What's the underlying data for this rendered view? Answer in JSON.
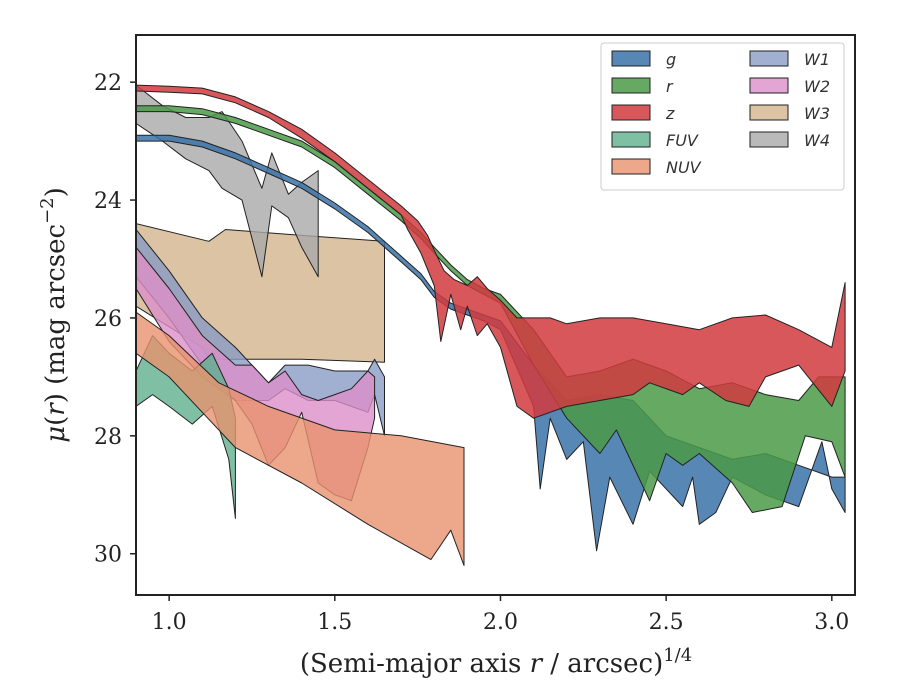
{
  "chart_data": {
    "type": "area",
    "xlabel": "(Semi-major axis r / arcsec)^1/4",
    "ylabel": "μ(r) (mag arcsec^−2)",
    "xlim": [
      0.9,
      3.07
    ],
    "ylim": [
      30.7,
      21.2
    ],
    "y_inverted": true,
    "grid": false,
    "legend_position": "top-right",
    "x_ticks": [
      1.0,
      1.5,
      2.0,
      2.5,
      3.0
    ],
    "x_tick_labels": [
      "1.0",
      "1.5",
      "2.0",
      "2.5",
      "3.0"
    ],
    "y_ticks": [
      22,
      24,
      26,
      28,
      30
    ],
    "y_tick_labels": [
      "22",
      "24",
      "26",
      "28",
      "30"
    ],
    "series": [
      {
        "name": "W3",
        "color": "#d2b48c",
        "opacity": 0.8,
        "upper": [
          [
            0.9,
            24.4
          ],
          [
            1.12,
            24.7
          ],
          [
            1.17,
            24.5
          ],
          [
            1.4,
            24.6
          ],
          [
            1.65,
            24.7
          ]
        ],
        "lower": [
          [
            0.9,
            25.8
          ],
          [
            1.1,
            26.5
          ],
          [
            1.12,
            26.7
          ],
          [
            1.4,
            26.7
          ],
          [
            1.65,
            26.75
          ]
        ]
      },
      {
        "name": "W4",
        "color": "#a9a9a9",
        "opacity": 0.8,
        "upper": [
          [
            0.9,
            22.05
          ],
          [
            0.98,
            22.4
          ],
          [
            1.05,
            22.6
          ],
          [
            1.12,
            22.6
          ],
          [
            1.16,
            22.5
          ],
          [
            1.22,
            23.0
          ],
          [
            1.28,
            23.8
          ],
          [
            1.31,
            23.2
          ],
          [
            1.36,
            23.9
          ],
          [
            1.4,
            23.7
          ],
          [
            1.45,
            23.5
          ]
        ],
        "lower": [
          [
            0.9,
            22.7
          ],
          [
            0.98,
            23.0
          ],
          [
            1.05,
            23.3
          ],
          [
            1.12,
            23.5
          ],
          [
            1.16,
            23.8
          ],
          [
            1.22,
            24.0
          ],
          [
            1.28,
            25.3
          ],
          [
            1.31,
            24.1
          ],
          [
            1.36,
            24.3
          ],
          [
            1.4,
            24.8
          ],
          [
            1.45,
            25.3
          ]
        ]
      },
      {
        "name": "W1",
        "color": "#8a9bc4",
        "opacity": 0.8,
        "upper": [
          [
            0.9,
            24.5
          ],
          [
            1.0,
            25.2
          ],
          [
            1.1,
            26.0
          ],
          [
            1.2,
            26.5
          ],
          [
            1.3,
            27.1
          ],
          [
            1.35,
            26.8
          ],
          [
            1.42,
            26.8
          ],
          [
            1.5,
            26.9
          ],
          [
            1.55,
            26.9
          ],
          [
            1.6,
            26.9
          ],
          [
            1.62,
            26.7
          ],
          [
            1.65,
            27.0
          ]
        ],
        "lower": [
          [
            0.9,
            25.3
          ],
          [
            1.0,
            26.0
          ],
          [
            1.1,
            26.8
          ],
          [
            1.2,
            27.4
          ],
          [
            1.3,
            27.4
          ],
          [
            1.35,
            27.2
          ],
          [
            1.42,
            27.4
          ],
          [
            1.5,
            27.4
          ],
          [
            1.55,
            27.5
          ],
          [
            1.6,
            27.6
          ],
          [
            1.62,
            27.3
          ],
          [
            1.65,
            28.0
          ]
        ]
      },
      {
        "name": "W2",
        "color": "#dc8fc8",
        "opacity": 0.8,
        "upper": [
          [
            0.9,
            24.8
          ],
          [
            1.0,
            25.5
          ],
          [
            1.1,
            26.3
          ],
          [
            1.2,
            26.8
          ],
          [
            1.25,
            26.8
          ],
          [
            1.3,
            27.1
          ],
          [
            1.35,
            26.9
          ],
          [
            1.4,
            27.3
          ],
          [
            1.45,
            27.4
          ],
          [
            1.5,
            27.3
          ],
          [
            1.55,
            27.2
          ],
          [
            1.6,
            26.9
          ],
          [
            1.62,
            27.0
          ]
        ],
        "lower": [
          [
            0.9,
            25.5
          ],
          [
            1.0,
            26.4
          ],
          [
            1.1,
            27.0
          ],
          [
            1.2,
            27.4
          ],
          [
            1.25,
            27.8
          ],
          [
            1.3,
            28.5
          ],
          [
            1.35,
            28.2
          ],
          [
            1.4,
            27.6
          ],
          [
            1.45,
            28.8
          ],
          [
            1.5,
            29.0
          ],
          [
            1.55,
            29.1
          ],
          [
            1.6,
            28.2
          ],
          [
            1.62,
            27.7
          ]
        ]
      },
      {
        "name": "FUV",
        "color": "#5fb08f",
        "opacity": 0.8,
        "upper": [
          [
            0.9,
            26.9
          ],
          [
            0.95,
            26.3
          ],
          [
            1.0,
            26.6
          ],
          [
            1.07,
            26.9
          ],
          [
            1.13,
            26.6
          ],
          [
            1.18,
            27.2
          ],
          [
            1.2,
            27.7
          ]
        ],
        "lower": [
          [
            0.9,
            27.5
          ],
          [
            0.95,
            27.3
          ],
          [
            1.0,
            27.5
          ],
          [
            1.07,
            27.8
          ],
          [
            1.13,
            27.5
          ],
          [
            1.18,
            28.4
          ],
          [
            1.2,
            29.4
          ]
        ]
      },
      {
        "name": "NUV",
        "color": "#e8926e",
        "opacity": 0.8,
        "upper": [
          [
            0.9,
            25.9
          ],
          [
            1.0,
            26.3
          ],
          [
            1.15,
            27.1
          ],
          [
            1.3,
            27.5
          ],
          [
            1.5,
            27.9
          ],
          [
            1.7,
            28.0
          ],
          [
            1.89,
            28.2
          ]
        ],
        "lower": [
          [
            0.9,
            26.6
          ],
          [
            1.0,
            27.0
          ],
          [
            1.1,
            27.6
          ],
          [
            1.2,
            28.2
          ],
          [
            1.4,
            28.8
          ],
          [
            1.6,
            29.5
          ],
          [
            1.79,
            30.1
          ],
          [
            1.85,
            29.6
          ],
          [
            1.89,
            30.2
          ]
        ]
      },
      {
        "name": "g",
        "color": "#3a73a8",
        "opacity": 0.85,
        "upper": [
          [
            0.9,
            22.9
          ],
          [
            1.0,
            22.9
          ],
          [
            1.1,
            23.0
          ],
          [
            1.2,
            23.2
          ],
          [
            1.3,
            23.45
          ],
          [
            1.4,
            23.7
          ],
          [
            1.5,
            24.05
          ],
          [
            1.6,
            24.45
          ],
          [
            1.7,
            24.95
          ],
          [
            1.76,
            25.25
          ],
          [
            1.8,
            25.55
          ],
          [
            1.85,
            25.75
          ],
          [
            1.9,
            25.85
          ],
          [
            1.95,
            25.95
          ],
          [
            2.0,
            26.05
          ],
          [
            2.1,
            26.8
          ],
          [
            2.2,
            27.4
          ],
          [
            2.3,
            27.3
          ],
          [
            2.4,
            27.4
          ],
          [
            2.5,
            28.0
          ],
          [
            2.6,
            28.2
          ],
          [
            2.7,
            28.4
          ],
          [
            2.8,
            28.3
          ],
          [
            2.9,
            28.5
          ],
          [
            3.0,
            28.7
          ],
          [
            3.04,
            28.7
          ]
        ],
        "lower": [
          [
            0.9,
            23.0
          ],
          [
            1.0,
            23.0
          ],
          [
            1.1,
            23.1
          ],
          [
            1.2,
            23.3
          ],
          [
            1.3,
            23.55
          ],
          [
            1.4,
            23.8
          ],
          [
            1.5,
            24.15
          ],
          [
            1.6,
            24.55
          ],
          [
            1.7,
            25.05
          ],
          [
            1.76,
            25.35
          ],
          [
            1.8,
            25.65
          ],
          [
            1.85,
            25.85
          ],
          [
            1.9,
            25.95
          ],
          [
            1.95,
            26.05
          ],
          [
            2.0,
            26.2
          ],
          [
            2.1,
            27.5
          ],
          [
            2.12,
            28.9
          ],
          [
            2.15,
            27.7
          ],
          [
            2.2,
            28.4
          ],
          [
            2.25,
            28.1
          ],
          [
            2.29,
            29.95
          ],
          [
            2.33,
            28.7
          ],
          [
            2.4,
            29.5
          ],
          [
            2.45,
            28.6
          ],
          [
            2.55,
            29.2
          ],
          [
            2.58,
            28.7
          ],
          [
            2.6,
            29.5
          ],
          [
            2.65,
            29.3
          ],
          [
            2.7,
            28.7
          ],
          [
            2.8,
            29.0
          ],
          [
            2.9,
            29.2
          ],
          [
            2.97,
            28.1
          ],
          [
            3.0,
            28.9
          ],
          [
            3.04,
            29.3
          ]
        ]
      },
      {
        "name": "r",
        "color": "#4a9a48",
        "opacity": 0.85,
        "upper": [
          [
            0.9,
            22.4
          ],
          [
            1.0,
            22.4
          ],
          [
            1.1,
            22.45
          ],
          [
            1.2,
            22.6
          ],
          [
            1.3,
            22.8
          ],
          [
            1.4,
            23.0
          ],
          [
            1.5,
            23.35
          ],
          [
            1.6,
            23.8
          ],
          [
            1.7,
            24.25
          ],
          [
            1.76,
            24.55
          ],
          [
            1.8,
            24.8
          ],
          [
            1.85,
            25.1
          ],
          [
            1.9,
            25.35
          ],
          [
            1.95,
            25.5
          ],
          [
            2.0,
            25.6
          ],
          [
            2.1,
            26.2
          ],
          [
            2.2,
            27.0
          ],
          [
            2.3,
            26.9
          ],
          [
            2.4,
            26.7
          ],
          [
            2.5,
            26.9
          ],
          [
            2.6,
            27.2
          ],
          [
            2.7,
            27.1
          ],
          [
            2.8,
            27.3
          ],
          [
            2.9,
            27.4
          ],
          [
            2.96,
            27.0
          ],
          [
            3.04,
            27.0
          ]
        ],
        "lower": [
          [
            0.9,
            22.5
          ],
          [
            1.0,
            22.5
          ],
          [
            1.1,
            22.55
          ],
          [
            1.2,
            22.7
          ],
          [
            1.3,
            22.9
          ],
          [
            1.4,
            23.1
          ],
          [
            1.5,
            23.45
          ],
          [
            1.6,
            23.9
          ],
          [
            1.7,
            24.35
          ],
          [
            1.76,
            24.65
          ],
          [
            1.8,
            24.9
          ],
          [
            1.85,
            25.2
          ],
          [
            1.9,
            25.45
          ],
          [
            1.95,
            25.6
          ],
          [
            2.0,
            25.75
          ],
          [
            2.1,
            26.8
          ],
          [
            2.2,
            27.7
          ],
          [
            2.3,
            28.3
          ],
          [
            2.35,
            27.9
          ],
          [
            2.45,
            29.1
          ],
          [
            2.5,
            28.3
          ],
          [
            2.55,
            28.5
          ],
          [
            2.6,
            28.3
          ],
          [
            2.7,
            28.8
          ],
          [
            2.76,
            29.3
          ],
          [
            2.85,
            29.2
          ],
          [
            2.92,
            28.0
          ],
          [
            3.0,
            28.1
          ],
          [
            3.04,
            28.7
          ]
        ]
      },
      {
        "name": "z",
        "color": "#d13a3e",
        "opacity": 0.85,
        "upper": [
          [
            0.9,
            22.05
          ],
          [
            1.0,
            22.07
          ],
          [
            1.1,
            22.1
          ],
          [
            1.2,
            22.25
          ],
          [
            1.3,
            22.5
          ],
          [
            1.4,
            22.8
          ],
          [
            1.5,
            23.2
          ],
          [
            1.6,
            23.65
          ],
          [
            1.7,
            24.1
          ],
          [
            1.75,
            24.35
          ],
          [
            1.78,
            24.6
          ],
          [
            1.8,
            24.85
          ],
          [
            1.83,
            25.2
          ],
          [
            1.86,
            25.35
          ],
          [
            1.9,
            25.45
          ],
          [
            1.93,
            25.3
          ],
          [
            1.96,
            25.5
          ],
          [
            2.0,
            25.7
          ],
          [
            2.05,
            26.0
          ],
          [
            2.15,
            26.0
          ],
          [
            2.2,
            26.1
          ],
          [
            2.3,
            26.0
          ],
          [
            2.4,
            26.0
          ],
          [
            2.5,
            26.1
          ],
          [
            2.6,
            26.2
          ],
          [
            2.7,
            26.0
          ],
          [
            2.8,
            25.95
          ],
          [
            2.9,
            26.2
          ],
          [
            3.0,
            26.5
          ],
          [
            3.04,
            25.4
          ]
        ],
        "lower": [
          [
            0.9,
            22.15
          ],
          [
            1.0,
            22.17
          ],
          [
            1.1,
            22.2
          ],
          [
            1.2,
            22.35
          ],
          [
            1.3,
            22.6
          ],
          [
            1.4,
            22.95
          ],
          [
            1.5,
            23.35
          ],
          [
            1.6,
            23.8
          ],
          [
            1.7,
            24.25
          ],
          [
            1.72,
            24.5
          ],
          [
            1.76,
            24.9
          ],
          [
            1.8,
            25.45
          ],
          [
            1.82,
            26.4
          ],
          [
            1.85,
            25.6
          ],
          [
            1.88,
            26.2
          ],
          [
            1.9,
            25.8
          ],
          [
            1.93,
            26.3
          ],
          [
            1.96,
            26.1
          ],
          [
            2.0,
            26.5
          ],
          [
            2.05,
            27.5
          ],
          [
            2.1,
            27.7
          ],
          [
            2.2,
            27.5
          ],
          [
            2.3,
            27.4
          ],
          [
            2.4,
            27.3
          ],
          [
            2.45,
            27.1
          ],
          [
            2.55,
            27.3
          ],
          [
            2.6,
            27.1
          ],
          [
            2.68,
            27.4
          ],
          [
            2.75,
            27.5
          ],
          [
            2.8,
            27.0
          ],
          [
            2.9,
            26.8
          ],
          [
            3.0,
            27.5
          ],
          [
            3.04,
            26.9
          ]
        ]
      }
    ],
    "legend": {
      "columns": [
        [
          "g",
          "r",
          "z",
          "FUV",
          "NUV"
        ],
        [
          "W1",
          "W2",
          "W3",
          "W4"
        ]
      ]
    }
  }
}
